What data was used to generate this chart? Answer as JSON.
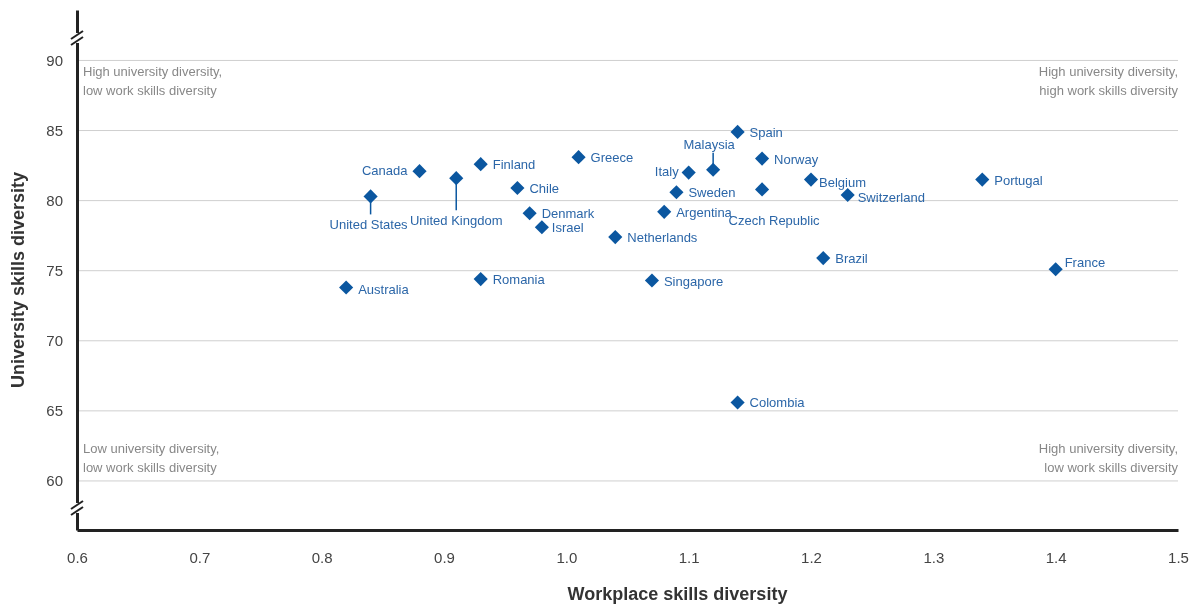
{
  "chart_data": {
    "type": "scatter",
    "xlabel": "Workplace skills diversity",
    "ylabel": "University skills diversity",
    "xlim": [
      0.6,
      1.5
    ],
    "xticks": [
      {
        "value": 0.6,
        "label": "0.6"
      },
      {
        "value": 0.7,
        "label": "0.7"
      },
      {
        "value": 0.8,
        "label": "0.8"
      },
      {
        "value": 0.9,
        "label": "0.9"
      },
      {
        "value": 1.0,
        "label": "1.0"
      },
      {
        "value": 1.1,
        "label": "1.1"
      },
      {
        "value": 1.2,
        "label": "1.2"
      },
      {
        "value": 1.3,
        "label": "1.3"
      },
      {
        "value": 1.4,
        "label": "1.4"
      },
      {
        "value": 1.5,
        "label": "1.5"
      }
    ],
    "ylim": [
      56.5,
      93.6
    ],
    "yticks": [
      60,
      65,
      70,
      75,
      80,
      85,
      90
    ],
    "grid": "y",
    "marker": "diamond",
    "series": [
      {
        "color": "#0b57a0",
        "x": [
          0.88,
          0.93,
          0.91,
          0.84,
          0.96,
          1.01,
          0.97,
          0.98,
          0.82,
          0.93,
          1.04,
          1.07,
          1.08,
          1.09,
          1.1,
          1.12,
          1.14,
          1.16,
          1.16,
          1.2,
          1.23,
          1.34,
          1.21,
          1.4,
          1.14
        ],
        "values": [
          82.1,
          82.6,
          81.6,
          80.3,
          80.9,
          83.1,
          79.1,
          78.1,
          73.8,
          74.4,
          77.4,
          74.3,
          79.2,
          80.6,
          82.0,
          82.2,
          84.9,
          83.0,
          80.8,
          81.5,
          80.4,
          81.5,
          75.9,
          75.1,
          65.6
        ]
      }
    ],
    "annotations": [
      "High university diversity,\nlow work skills diversity",
      "High university diversity,\nhigh work skills diversity",
      "Low university diversity,\nlow work skills diversity",
      "High university diversity,\nlow work skills diversity",
      {
        "text": "Canada",
        "x": 0.88,
        "y": 82.1
      },
      {
        "text": "Finland",
        "x": 0.93,
        "y": 82.6
      },
      {
        "text": "United Kingdom",
        "x": 0.91,
        "y": 81.6
      },
      {
        "text": "United States",
        "x": 0.84,
        "y": 80.3
      },
      {
        "text": "Chile",
        "x": 0.96,
        "y": 80.9
      },
      {
        "text": "Greece",
        "x": 1.01,
        "y": 83.1
      },
      {
        "text": "Denmark",
        "x": 0.97,
        "y": 79.1
      },
      {
        "text": "Israel",
        "x": 0.98,
        "y": 78.1
      },
      {
        "text": "Australia",
        "x": 0.82,
        "y": 73.8
      },
      {
        "text": "Romania",
        "x": 0.93,
        "y": 74.4
      },
      {
        "text": "Netherlands",
        "x": 1.04,
        "y": 77.4
      },
      {
        "text": "Singapore",
        "x": 1.07,
        "y": 74.3
      },
      {
        "text": "Argentina",
        "x": 1.08,
        "y": 79.2
      },
      {
        "text": "Sweden",
        "x": 1.09,
        "y": 80.6
      },
      {
        "text": "Italy",
        "x": 1.1,
        "y": 82.0
      },
      {
        "text": "Malaysia",
        "x": 1.12,
        "y": 82.2
      },
      {
        "text": "Spain",
        "x": 1.14,
        "y": 84.9
      },
      {
        "text": "Norway",
        "x": 1.16,
        "y": 83.0
      },
      {
        "text": "Czech Republic",
        "x": 1.16,
        "y": 80.8
      },
      {
        "text": "Belgium",
        "x": 1.2,
        "y": 81.5
      },
      {
        "text": "Switzerland",
        "x": 1.23,
        "y": 80.4
      },
      {
        "text": "Portugal",
        "x": 1.34,
        "y": 81.5
      },
      {
        "text": "Brazil",
        "x": 1.21,
        "y": 75.9
      },
      {
        "text": "France",
        "x": 1.4,
        "y": 75.1
      },
      {
        "text": "Colombia",
        "x": 1.14,
        "y": 65.6
      }
    ]
  }
}
